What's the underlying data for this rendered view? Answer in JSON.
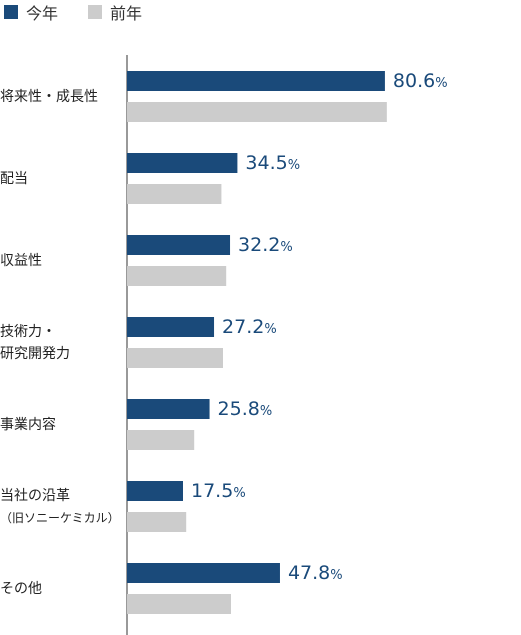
{
  "legend": {
    "current_label": "今年",
    "previous_label": "前年",
    "current_color": "#1a4a7a",
    "previous_color": "#cccccc"
  },
  "chart_data": {
    "type": "bar",
    "orientation": "horizontal",
    "categories": [
      [
        "将来性・成長性"
      ],
      [
        "配当"
      ],
      [
        "収益性"
      ],
      [
        "技術力・",
        "研究開発力"
      ],
      [
        "事業内容"
      ],
      [
        "当社の沿革",
        "（旧ソニーケミカル）"
      ],
      [
        "その他"
      ]
    ],
    "series": [
      {
        "name": "今年",
        "values": [
          80.6,
          34.5,
          32.2,
          27.2,
          25.8,
          17.5,
          47.8
        ]
      },
      {
        "name": "前年",
        "values": [
          81.2,
          29.5,
          31.0,
          30.0,
          21.0,
          18.5,
          32.5
        ]
      }
    ],
    "unit": "%",
    "xlim": [
      0,
      100
    ],
    "value_labels_shown_for": "今年",
    "legend_position": "top-left",
    "grid": false
  }
}
